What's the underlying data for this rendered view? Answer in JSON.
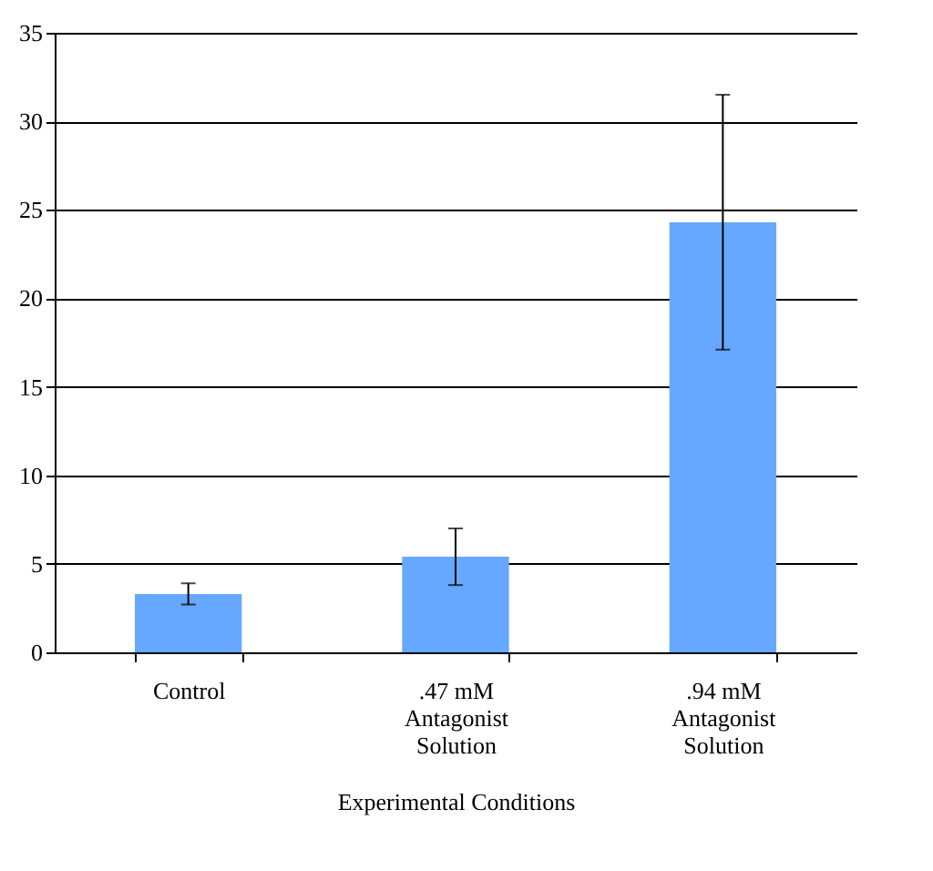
{
  "chart_data": {
    "type": "bar",
    "xlabel": "Experimental Conditions",
    "categories": [
      "Control",
      ".47 mM Antagonist Solution",
      ".94 mM Antagonist Solution"
    ],
    "values": [
      3.3,
      5.4,
      24.3
    ],
    "errors": [
      0.6,
      1.6,
      7.2
    ],
    "color": "#66a8ff",
    "ylim": [
      0,
      35
    ],
    "yticks": [
      0,
      5,
      10,
      15,
      20,
      25,
      30,
      35
    ],
    "grid": "y"
  }
}
